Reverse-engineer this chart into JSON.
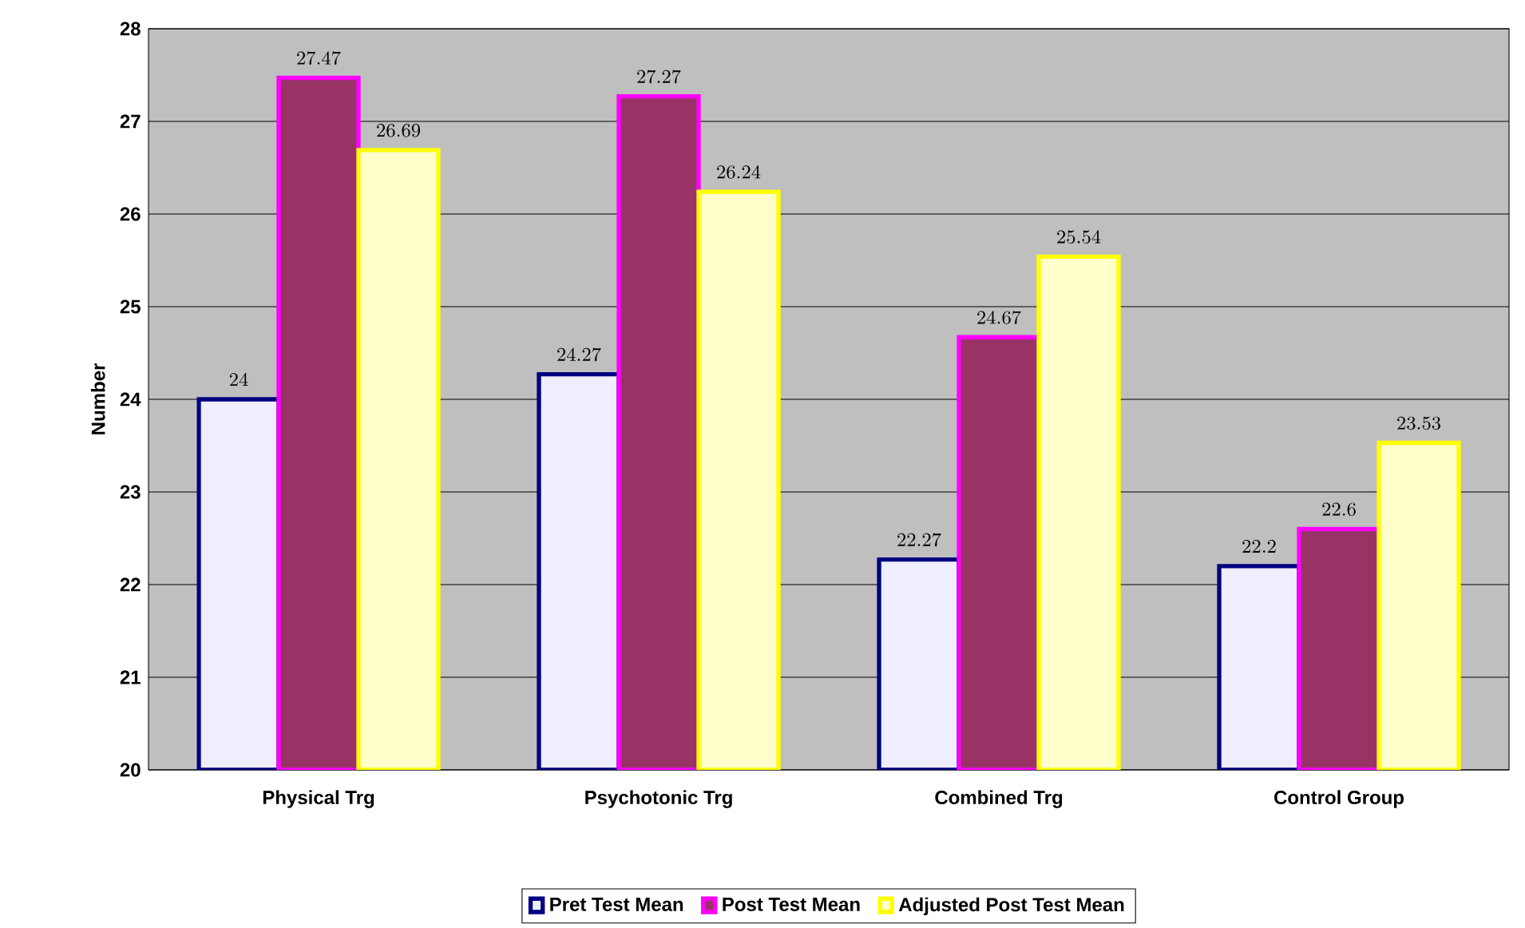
{
  "chart_data": {
    "type": "bar",
    "ylabel": "Number",
    "categories": [
      "Physical Trg",
      "Psychotonic Trg",
      "Combined Trg",
      "Control Group"
    ],
    "series": [
      {
        "name": "Pret Test Mean",
        "color": "#eeeeff",
        "values": [
          24,
          24.27,
          22.27,
          22.2
        ]
      },
      {
        "name": "Post Test Mean",
        "color": "#993366",
        "values": [
          27.47,
          27.27,
          24.67,
          22.6
        ]
      },
      {
        "name": "Adjusted Post Test Mean",
        "color": "#ffffcc",
        "values": [
          26.69,
          26.24,
          25.54,
          23.53
        ]
      }
    ],
    "ylim": [
      20,
      28
    ],
    "yticks": [
      20,
      21,
      22,
      23,
      24,
      25,
      26,
      27,
      28
    ],
    "grid": "y",
    "legend": "bottom",
    "data_labels": true
  }
}
